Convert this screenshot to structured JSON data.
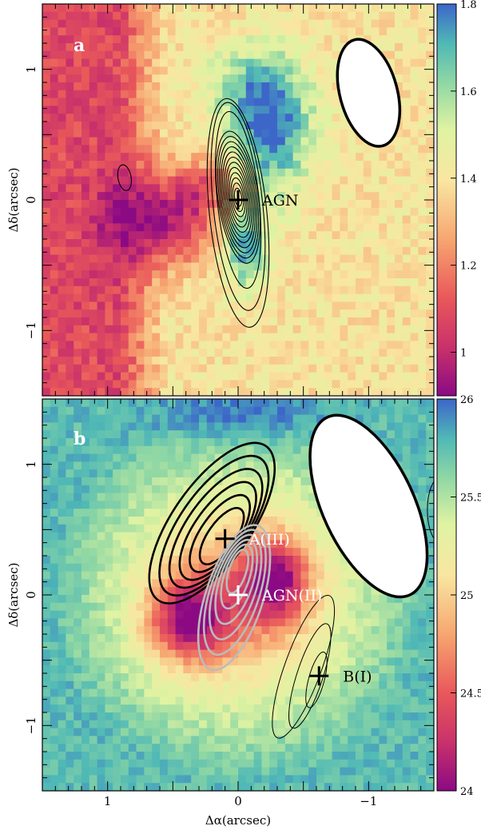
{
  "chart_data": [
    {
      "type": "heatmap",
      "panel_label": "a",
      "xlabel": "",
      "ylabel": "Δδ(arcsec)",
      "xlim": [
        1.5,
        -1.5
      ],
      "ylim": [
        -1.5,
        1.5
      ],
      "x_ticks": [
        "1",
        "0",
        "−1"
      ],
      "x_tick_values": [
        1,
        0,
        -1
      ],
      "y_ticks": [
        "−1",
        "0",
        "1"
      ],
      "y_tick_values": [
        -1,
        0,
        1
      ],
      "colorbar": {
        "range": [
          0.9,
          1.8
        ],
        "ticks": [
          "1",
          "1.2",
          "1.4",
          "1.6",
          "1.8"
        ],
        "tick_values": [
          1.0,
          1.2,
          1.4,
          1.6,
          1.8
        ]
      },
      "markers": [
        {
          "label": "AGN",
          "x": 0.0,
          "y": 0.0,
          "label_color": "#000000"
        }
      ],
      "beam": {
        "x": -1.0,
        "y": 0.82,
        "major": 0.42,
        "minor": 0.22,
        "pa_deg": 15
      },
      "contours": [
        {
          "color": "#000000",
          "center": [
            0.0,
            0.05
          ],
          "levels": 14
        }
      ]
    },
    {
      "type": "heatmap",
      "panel_label": "b",
      "xlabel": "Δα(arcsec)",
      "ylabel": "Δδ(arcsec)",
      "xlim": [
        1.5,
        -1.5
      ],
      "ylim": [
        -1.5,
        1.5
      ],
      "x_ticks": [
        "1",
        "0",
        "−1"
      ],
      "x_tick_values": [
        1,
        0,
        -1
      ],
      "y_ticks": [
        "−1",
        "0",
        "1"
      ],
      "y_tick_values": [
        -1,
        0,
        1
      ],
      "colorbar": {
        "range": [
          24,
          26
        ],
        "ticks": [
          "24",
          "24.5",
          "25",
          "25.5",
          "26"
        ],
        "tick_values": [
          24,
          24.5,
          25,
          25.5,
          26
        ]
      },
      "markers": [
        {
          "label": "A(III)",
          "x": 0.1,
          "y": 0.43,
          "label_color": "#ffffff"
        },
        {
          "label": "AGN(II)",
          "x": 0.0,
          "y": 0.0,
          "label_color": "#ffffff"
        },
        {
          "label": "B(I)",
          "x": -0.62,
          "y": -0.62,
          "label_color": "#000000"
        }
      ],
      "beam": {
        "x": -1.0,
        "y": 0.68,
        "major": 0.75,
        "minor": 0.35,
        "pa_deg": 25
      },
      "contours": [
        {
          "color": "#000000",
          "weight": "thick",
          "center": [
            0.2,
            0.55
          ],
          "levels": 6
        },
        {
          "color": "#bbbbbb",
          "weight": "thick",
          "center": [
            0.02,
            -0.02
          ],
          "levels": 6
        },
        {
          "color": "#000000",
          "weight": "thin",
          "center": [
            -0.6,
            -0.65
          ],
          "levels": 3
        }
      ]
    }
  ]
}
